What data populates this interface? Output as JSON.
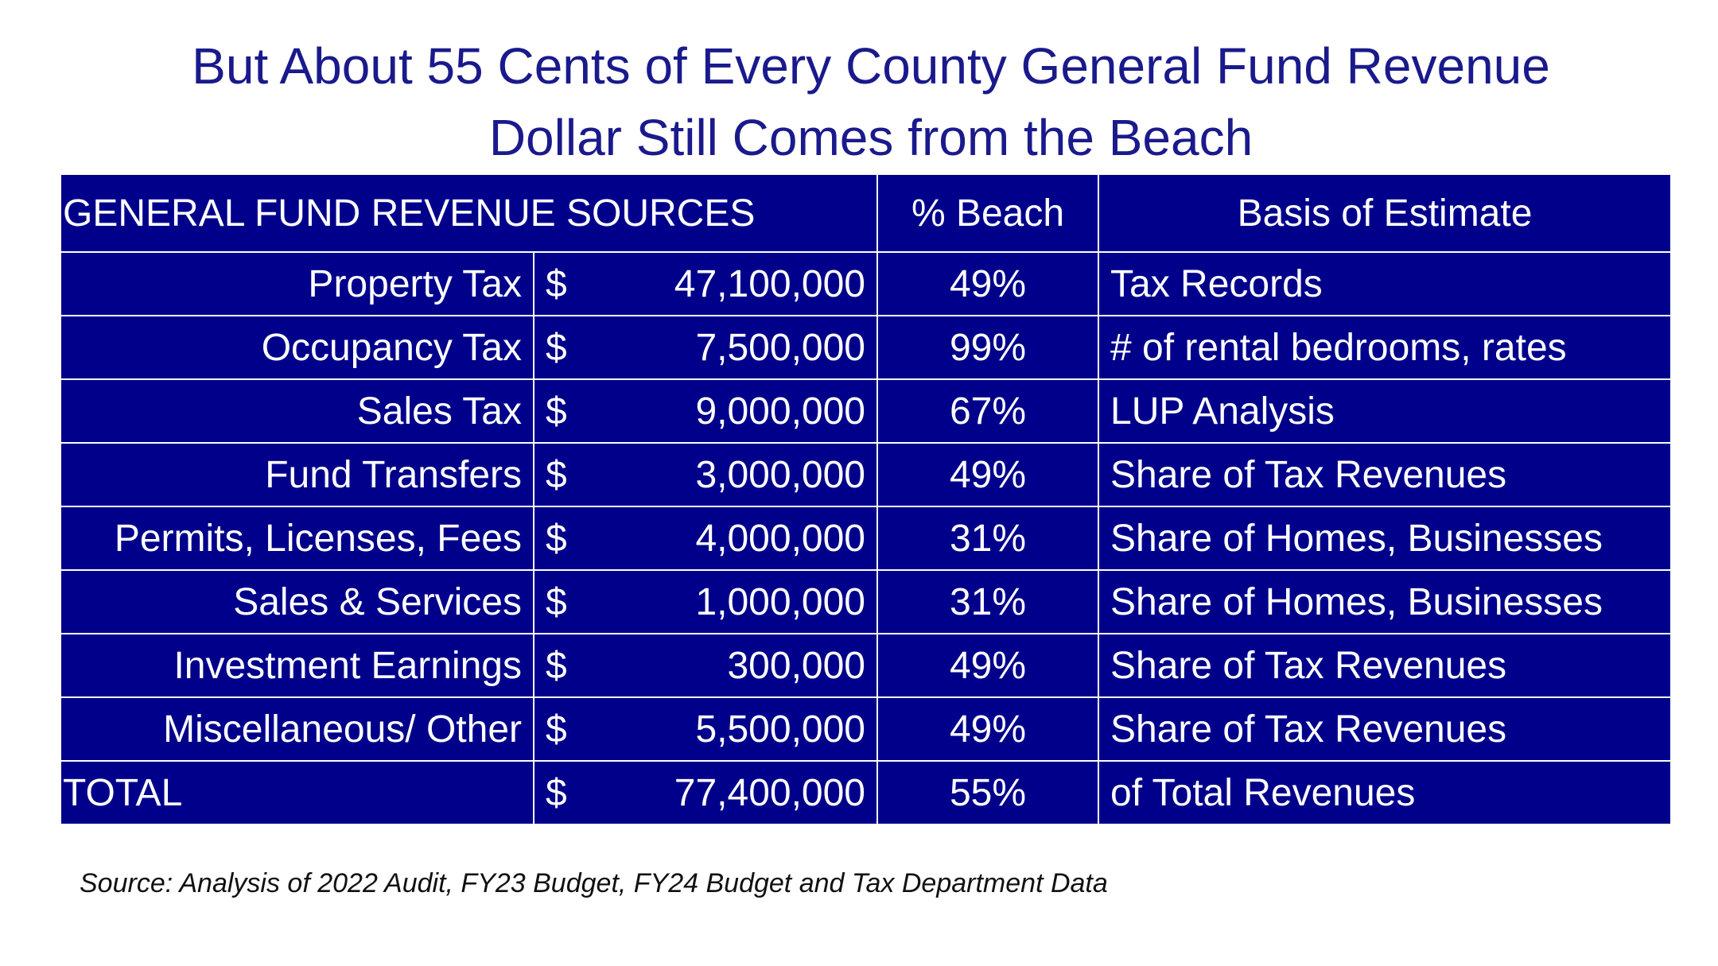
{
  "title": {
    "line1": "But About 55 Cents of Every County General Fund Revenue",
    "line2": "Dollar Still Comes from the Beach"
  },
  "table": {
    "headers": {
      "sources": "GENERAL FUND REVENUE SOURCES",
      "pct": "% Beach",
      "basis": "Basis of Estimate"
    },
    "rows": [
      {
        "label": "Property Tax",
        "currency": "$",
        "amount": "47,100,000",
        "pct": "49%",
        "basis": "Tax Records"
      },
      {
        "label": "Occupancy Tax",
        "currency": "$",
        "amount": "7,500,000",
        "pct": "99%",
        "basis": "# of rental bedrooms, rates"
      },
      {
        "label": "Sales Tax",
        "currency": "$",
        "amount": "9,000,000",
        "pct": "67%",
        "basis": "LUP Analysis"
      },
      {
        "label": "Fund Transfers",
        "currency": "$",
        "amount": "3,000,000",
        "pct": "49%",
        "basis": "Share of  Tax Revenues"
      },
      {
        "label": "Permits, Licenses, Fees",
        "currency": "$",
        "amount": "4,000,000",
        "pct": "31%",
        "basis": "Share of Homes, Businesses"
      },
      {
        "label": "Sales & Services",
        "currency": "$",
        "amount": "1,000,000",
        "pct": "31%",
        "basis": "Share of Homes, Businesses"
      },
      {
        "label": "Investment Earnings",
        "currency": "$",
        "amount": "300,000",
        "pct": "49%",
        "basis": "Share of  Tax Revenues"
      },
      {
        "label": "Miscellaneous/ Other",
        "currency": "$",
        "amount": "5,500,000",
        "pct": "49%",
        "basis": "Share of  Tax Revenues"
      }
    ],
    "total": {
      "label": "TOTAL",
      "currency": "$",
      "amount": "77,400,000",
      "pct": "55%",
      "basis": "of Total Revenues"
    }
  },
  "source_note": "Source: Analysis of 2022 Audit, FY23  Budget, FY24 Budget and Tax Department Data",
  "colors": {
    "title": "#1a1a8c",
    "table_bg": "#00008b",
    "table_text": "#ffffff",
    "table_border": "#ffffff"
  }
}
